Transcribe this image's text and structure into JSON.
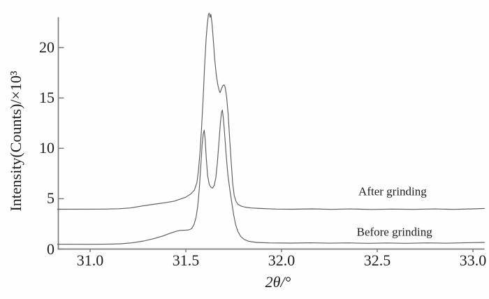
{
  "figure": {
    "background": "#fefefe",
    "text_color": "#1c1c1c",
    "curve_color": "#5c5c5c",
    "axis_color": "#7d7d7d"
  },
  "chart_data": {
    "type": "line",
    "title": "",
    "xlabel": "2θ/°",
    "ylabel": "Intensity(Counts)/×10³",
    "xlim": [
      30.83,
      33.06
    ],
    "ylim": [
      0,
      23.0
    ],
    "grid": false,
    "x_ticks": [
      31.0,
      31.5,
      32.0,
      32.5,
      33.0
    ],
    "x_tick_labels": [
      "31.0",
      "31.5",
      "32.0",
      "32.5",
      "33.0"
    ],
    "y_ticks": [
      0,
      5,
      10,
      15,
      20
    ],
    "y_tick_labels": [
      "0",
      "5",
      "10",
      "15",
      "20"
    ],
    "legend_position": "inline text annotations at right of traces",
    "series": [
      {
        "name": "After grinding",
        "baseline_intensity": 4.0,
        "peaks": [
          {
            "two_theta": 31.62,
            "intensity": 23.4
          },
          {
            "two_theta": 31.7,
            "intensity": 16.3
          }
        ],
        "points": [
          [
            30.83,
            3.95
          ],
          [
            31.0,
            3.96
          ],
          [
            31.08,
            3.97
          ],
          [
            31.15,
            4.0
          ],
          [
            31.21,
            4.08
          ],
          [
            31.27,
            4.27
          ],
          [
            31.33,
            4.44
          ],
          [
            31.39,
            4.6
          ],
          [
            31.44,
            4.76
          ],
          [
            31.47,
            4.95
          ],
          [
            31.5,
            5.15
          ],
          [
            31.525,
            5.45
          ],
          [
            31.545,
            5.85
          ],
          [
            31.558,
            6.6
          ],
          [
            31.566,
            7.8
          ],
          [
            31.574,
            9.6
          ],
          [
            31.582,
            12.0
          ],
          [
            31.59,
            14.8
          ],
          [
            31.598,
            18.2
          ],
          [
            31.606,
            20.8
          ],
          [
            31.612,
            22.3
          ],
          [
            31.618,
            23.25
          ],
          [
            31.622,
            23.42
          ],
          [
            31.627,
            23.0
          ],
          [
            31.631,
            23.3
          ],
          [
            31.637,
            22.4
          ],
          [
            31.643,
            20.9
          ],
          [
            31.651,
            18.8
          ],
          [
            31.659,
            17.3
          ],
          [
            31.667,
            16.3
          ],
          [
            31.674,
            15.75
          ],
          [
            31.679,
            15.52
          ],
          [
            31.686,
            15.9
          ],
          [
            31.693,
            16.22
          ],
          [
            31.7,
            16.3
          ],
          [
            31.706,
            16.05
          ],
          [
            31.713,
            15.1
          ],
          [
            31.721,
            13.4
          ],
          [
            31.729,
            11.0
          ],
          [
            31.737,
            8.7
          ],
          [
            31.745,
            6.5
          ],
          [
            31.753,
            5.3
          ],
          [
            31.762,
            4.75
          ],
          [
            31.772,
            4.45
          ],
          [
            31.788,
            4.27
          ],
          [
            31.81,
            4.16
          ],
          [
            31.84,
            4.08
          ],
          [
            31.9,
            4.02
          ],
          [
            31.97,
            3.97
          ],
          [
            32.06,
            3.95
          ],
          [
            32.16,
            3.99
          ],
          [
            32.26,
            3.94
          ],
          [
            32.36,
            3.98
          ],
          [
            32.47,
            3.93
          ],
          [
            32.58,
            3.97
          ],
          [
            32.69,
            3.94
          ],
          [
            32.8,
            3.98
          ],
          [
            32.9,
            3.94
          ],
          [
            33.0,
            3.99
          ],
          [
            33.06,
            4.03
          ]
        ]
      },
      {
        "name": "Before grinding",
        "baseline_intensity": 0.5,
        "peaks": [
          {
            "two_theta": 31.6,
            "intensity": 11.8
          },
          {
            "two_theta": 31.69,
            "intensity": 13.8
          }
        ],
        "points": [
          [
            30.83,
            0.48
          ],
          [
            31.0,
            0.47
          ],
          [
            31.1,
            0.49
          ],
          [
            31.16,
            0.52
          ],
          [
            31.22,
            0.62
          ],
          [
            31.28,
            0.8
          ],
          [
            31.33,
            1.02
          ],
          [
            31.38,
            1.3
          ],
          [
            31.42,
            1.58
          ],
          [
            31.45,
            1.76
          ],
          [
            31.47,
            1.85
          ],
          [
            31.5,
            1.88
          ],
          [
            31.515,
            1.9
          ],
          [
            31.53,
            2.02
          ],
          [
            31.543,
            2.45
          ],
          [
            31.553,
            3.1
          ],
          [
            31.562,
            4.2
          ],
          [
            31.57,
            5.9
          ],
          [
            31.578,
            8.2
          ],
          [
            31.585,
            10.3
          ],
          [
            31.591,
            11.4
          ],
          [
            31.596,
            11.8
          ],
          [
            31.601,
            10.9
          ],
          [
            31.607,
            9.0
          ],
          [
            31.614,
            7.3
          ],
          [
            31.622,
            6.45
          ],
          [
            31.63,
            6.15
          ],
          [
            31.639,
            6.05
          ],
          [
            31.648,
            6.3
          ],
          [
            31.657,
            7.1
          ],
          [
            31.665,
            8.6
          ],
          [
            31.673,
            10.6
          ],
          [
            31.681,
            12.6
          ],
          [
            31.687,
            13.6
          ],
          [
            31.691,
            13.8
          ],
          [
            31.696,
            13.0
          ],
          [
            31.703,
            11.4
          ],
          [
            31.711,
            9.3
          ],
          [
            31.72,
            7.3
          ],
          [
            31.73,
            5.9
          ],
          [
            31.74,
            4.6
          ],
          [
            31.75,
            3.4
          ],
          [
            31.76,
            2.45
          ],
          [
            31.772,
            1.75
          ],
          [
            31.787,
            1.25
          ],
          [
            31.805,
            0.95
          ],
          [
            31.83,
            0.76
          ],
          [
            31.87,
            0.66
          ],
          [
            31.935,
            0.61
          ],
          [
            32.05,
            0.59
          ],
          [
            32.15,
            0.62
          ],
          [
            32.25,
            0.58
          ],
          [
            32.35,
            0.61
          ],
          [
            32.45,
            0.57
          ],
          [
            32.55,
            0.6
          ],
          [
            32.65,
            0.57
          ],
          [
            32.76,
            0.61
          ],
          [
            32.87,
            0.58
          ],
          [
            32.97,
            0.63
          ],
          [
            33.06,
            0.66
          ]
        ]
      }
    ],
    "annotations": [
      {
        "text": "After grinding",
        "x": 32.58,
        "y": 5.67
      },
      {
        "text": "Before grinding",
        "x": 32.59,
        "y": 1.66
      }
    ]
  }
}
